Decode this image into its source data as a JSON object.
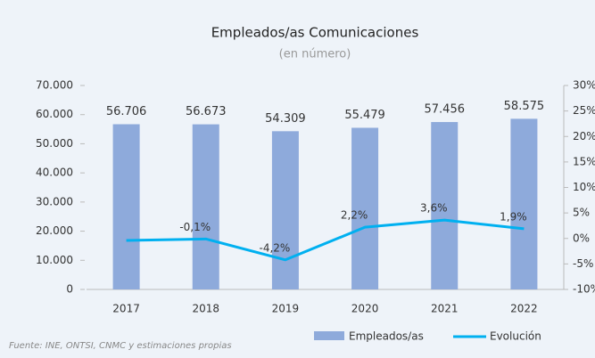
{
  "chart_data": {
    "type": "bar-line",
    "title": "Empleados/as Comunicaciones",
    "subtitle": "(en número)",
    "source": "Fuente: INE, ONTSI, CNMC y estimaciones propias",
    "categories": [
      "2017",
      "2018",
      "2019",
      "2020",
      "2021",
      "2022"
    ],
    "series": [
      {
        "name": "Empleados/as",
        "color": "#8eaadb",
        "type": "bar",
        "values": [
          56706,
          56673,
          54309,
          55479,
          57456,
          58575
        ],
        "value_labels": [
          "56.706",
          "56.673",
          "54.309",
          "55.479",
          "57.456",
          "58.575"
        ]
      },
      {
        "name": "Evolución",
        "color": "#00b0f0",
        "type": "line",
        "axis": "y2",
        "values": [
          -0.4,
          -0.1,
          -4.2,
          2.2,
          3.6,
          1.9
        ],
        "value_labels": [
          null,
          "-0,1%",
          "-4,2%",
          "2,2%",
          "3,6%",
          "1,9%"
        ]
      }
    ],
    "ylim": [
      0,
      70000
    ],
    "yticks": [
      0,
      {
        "value": 10000,
        "label": "10.000"
      },
      {
        "value": 20000,
        "label": "20.000"
      },
      {
        "value": 30000,
        "label": "30.000"
      },
      {
        "value": 40000,
        "label": "40.000"
      },
      {
        "value": 50000,
        "label": "50.000"
      },
      {
        "value": 60000,
        "label": "60.000"
      },
      {
        "value": 70000,
        "label": "70.000"
      }
    ],
    "y2lim": [
      -10,
      30
    ],
    "y2ticks": [
      {
        "value": -10,
        "label": "-10%"
      },
      {
        "value": -5,
        "label": "-5%"
      },
      {
        "value": 0,
        "label": "0%"
      },
      {
        "value": 5,
        "label": "5%"
      },
      {
        "value": 10,
        "label": "10%"
      },
      {
        "value": 15,
        "label": "15%"
      },
      {
        "value": 20,
        "label": "20%"
      },
      {
        "value": 25,
        "label": "25%"
      },
      {
        "value": 30,
        "label": "30%"
      }
    ]
  }
}
